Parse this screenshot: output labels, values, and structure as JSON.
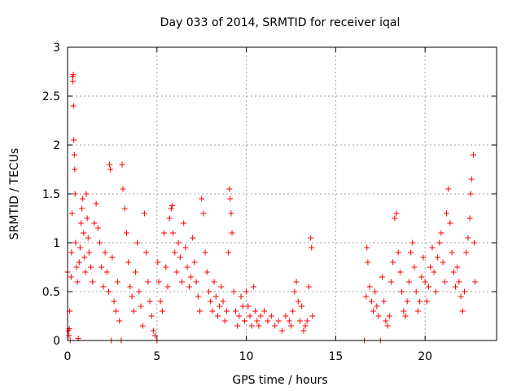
{
  "chart_data": {
    "type": "scatter",
    "title": "Day 033 of 2014, SRMTID for receiver iqal",
    "xlabel": "GPS time / hours",
    "ylabel": "SRMTID / TECUs",
    "xlim": [
      0,
      24
    ],
    "ylim": [
      0,
      3
    ],
    "xticks": [
      0,
      5,
      10,
      15,
      20
    ],
    "xtick_labels": [
      "0",
      "5",
      "10",
      "15",
      "20"
    ],
    "yticks": [
      0,
      0.5,
      1,
      1.5,
      2,
      2.5,
      3
    ],
    "ytick_labels": [
      "0",
      "0.5",
      "1",
      "1.5",
      "2",
      "2.5",
      "3"
    ],
    "grid": true,
    "marker": "+",
    "series": [
      {
        "name": "SRMTID",
        "color": "#ff0000",
        "points": [
          [
            0.0,
            0.7
          ],
          [
            0.05,
            0.1
          ],
          [
            0.08,
            0.05
          ],
          [
            0.1,
            0.12
          ],
          [
            0.12,
            0.3
          ],
          [
            0.15,
            0.0
          ],
          [
            0.2,
            0.65
          ],
          [
            0.22,
            0.9
          ],
          [
            0.25,
            1.3
          ],
          [
            0.28,
            2.7
          ],
          [
            0.3,
            2.65
          ],
          [
            0.32,
            2.72
          ],
          [
            0.33,
            2.4
          ],
          [
            0.35,
            2.05
          ],
          [
            0.38,
            1.9
          ],
          [
            0.4,
            1.75
          ],
          [
            0.42,
            1.5
          ],
          [
            0.45,
            1.0
          ],
          [
            0.5,
            0.75
          ],
          [
            0.55,
            0.6
          ],
          [
            0.6,
            0.02
          ],
          [
            0.65,
            0.8
          ],
          [
            0.7,
            0.95
          ],
          [
            0.75,
            1.2
          ],
          [
            0.8,
            1.35
          ],
          [
            0.85,
            1.45
          ],
          [
            0.9,
            1.1
          ],
          [
            0.95,
            0.85
          ],
          [
            1.0,
            0.7
          ],
          [
            1.05,
            1.5
          ],
          [
            1.1,
            1.25
          ],
          [
            1.15,
            1.05
          ],
          [
            1.2,
            0.9
          ],
          [
            1.3,
            0.75
          ],
          [
            1.4,
            0.6
          ],
          [
            1.5,
            1.2
          ],
          [
            1.6,
            1.4
          ],
          [
            1.7,
            1.15
          ],
          [
            1.8,
            1.0
          ],
          [
            1.9,
            0.75
          ],
          [
            2.0,
            0.55
          ],
          [
            2.1,
            0.9
          ],
          [
            2.2,
            0.7
          ],
          [
            2.3,
            0.5
          ],
          [
            2.35,
            1.8
          ],
          [
            2.4,
            1.75
          ],
          [
            2.45,
            0.0
          ],
          [
            2.5,
            0.85
          ],
          [
            2.6,
            0.4
          ],
          [
            2.7,
            0.3
          ],
          [
            2.8,
            0.6
          ],
          [
            2.9,
            0.2
          ],
          [
            3.0,
            0.0
          ],
          [
            3.05,
            1.8
          ],
          [
            3.1,
            1.55
          ],
          [
            3.2,
            1.35
          ],
          [
            3.3,
            1.1
          ],
          [
            3.4,
            0.8
          ],
          [
            3.5,
            0.55
          ],
          [
            3.6,
            0.45
          ],
          [
            3.7,
            0.3
          ],
          [
            3.8,
            0.7
          ],
          [
            3.9,
            1.0
          ],
          [
            4.0,
            0.5
          ],
          [
            4.1,
            0.35
          ],
          [
            4.2,
            0.15
          ],
          [
            4.3,
            1.3
          ],
          [
            4.4,
            0.9
          ],
          [
            4.5,
            0.6
          ],
          [
            4.6,
            0.4
          ],
          [
            4.7,
            0.25
          ],
          [
            4.8,
            0.1
          ],
          [
            4.9,
            0.05
          ],
          [
            5.0,
            0.0
          ],
          [
            5.05,
            0.8
          ],
          [
            5.1,
            0.6
          ],
          [
            5.2,
            0.4
          ],
          [
            5.3,
            0.3
          ],
          [
            5.4,
            1.1
          ],
          [
            5.5,
            0.75
          ],
          [
            5.6,
            0.55
          ],
          [
            5.7,
            1.25
          ],
          [
            5.8,
            1.35
          ],
          [
            5.85,
            1.38
          ],
          [
            5.9,
            1.1
          ],
          [
            6.0,
            0.9
          ],
          [
            6.1,
            0.7
          ],
          [
            6.2,
            1.0
          ],
          [
            6.3,
            0.85
          ],
          [
            6.4,
            0.6
          ],
          [
            6.5,
            1.2
          ],
          [
            6.6,
            0.95
          ],
          [
            6.7,
            0.75
          ],
          [
            6.8,
            0.55
          ],
          [
            6.9,
            0.65
          ],
          [
            7.0,
            1.05
          ],
          [
            7.1,
            0.8
          ],
          [
            7.2,
            0.6
          ],
          [
            7.3,
            0.45
          ],
          [
            7.4,
            0.3
          ],
          [
            7.5,
            1.45
          ],
          [
            7.6,
            1.3
          ],
          [
            7.7,
            0.9
          ],
          [
            7.8,
            0.7
          ],
          [
            7.9,
            0.5
          ],
          [
            8.0,
            0.4
          ],
          [
            8.1,
            0.3
          ],
          [
            8.2,
            0.6
          ],
          [
            8.3,
            0.45
          ],
          [
            8.4,
            0.25
          ],
          [
            8.5,
            0.35
          ],
          [
            8.6,
            0.55
          ],
          [
            8.7,
            0.4
          ],
          [
            8.8,
            0.2
          ],
          [
            8.9,
            0.3
          ],
          [
            9.0,
            0.9
          ],
          [
            9.05,
            1.55
          ],
          [
            9.1,
            1.45
          ],
          [
            9.15,
            1.3
          ],
          [
            9.2,
            1.1
          ],
          [
            9.3,
            0.5
          ],
          [
            9.4,
            0.3
          ],
          [
            9.5,
            0.15
          ],
          [
            9.6,
            0.25
          ],
          [
            9.7,
            0.45
          ],
          [
            9.8,
            0.35
          ],
          [
            9.9,
            0.2
          ],
          [
            10.0,
            0.5
          ],
          [
            10.1,
            0.35
          ],
          [
            10.2,
            0.25
          ],
          [
            10.3,
            0.15
          ],
          [
            10.4,
            0.55
          ],
          [
            10.5,
            0.3
          ],
          [
            10.6,
            0.2
          ],
          [
            10.7,
            0.15
          ],
          [
            10.8,
            0.25
          ],
          [
            11.0,
            0.3
          ],
          [
            11.2,
            0.2
          ],
          [
            11.4,
            0.25
          ],
          [
            11.6,
            0.15
          ],
          [
            11.8,
            0.2
          ],
          [
            12.0,
            0.1
          ],
          [
            12.2,
            0.25
          ],
          [
            12.4,
            0.2
          ],
          [
            12.5,
            0.15
          ],
          [
            12.6,
            0.3
          ],
          [
            12.7,
            0.5
          ],
          [
            12.8,
            0.6
          ],
          [
            12.9,
            0.4
          ],
          [
            13.0,
            0.2
          ],
          [
            13.1,
            0.35
          ],
          [
            13.2,
            0.1
          ],
          [
            13.3,
            0.15
          ],
          [
            13.4,
            0.2
          ],
          [
            13.5,
            0.55
          ],
          [
            13.6,
            1.05
          ],
          [
            13.65,
            0.95
          ],
          [
            13.7,
            0.25
          ],
          [
            16.6,
            0.0
          ],
          [
            16.7,
            0.45
          ],
          [
            16.75,
            0.95
          ],
          [
            16.8,
            0.8
          ],
          [
            16.9,
            0.55
          ],
          [
            17.0,
            0.4
          ],
          [
            17.1,
            0.3
          ],
          [
            17.2,
            0.5
          ],
          [
            17.3,
            0.35
          ],
          [
            17.4,
            0.25
          ],
          [
            17.5,
            0.0
          ],
          [
            17.6,
            0.65
          ],
          [
            17.7,
            0.4
          ],
          [
            17.8,
            0.2
          ],
          [
            17.9,
            0.15
          ],
          [
            18.0,
            0.25
          ],
          [
            18.1,
            0.6
          ],
          [
            18.2,
            0.8
          ],
          [
            18.3,
            1.25
          ],
          [
            18.4,
            1.3
          ],
          [
            18.5,
            0.9
          ],
          [
            18.6,
            0.7
          ],
          [
            18.7,
            0.5
          ],
          [
            18.8,
            0.3
          ],
          [
            18.9,
            0.25
          ],
          [
            19.0,
            0.4
          ],
          [
            19.1,
            0.6
          ],
          [
            19.2,
            0.9
          ],
          [
            19.3,
            1.0
          ],
          [
            19.4,
            0.75
          ],
          [
            19.5,
            0.5
          ],
          [
            19.6,
            0.3
          ],
          [
            19.7,
            0.4
          ],
          [
            19.8,
            0.65
          ],
          [
            19.9,
            0.85
          ],
          [
            20.0,
            0.6
          ],
          [
            20.1,
            0.4
          ],
          [
            20.2,
            0.55
          ],
          [
            20.3,
            0.75
          ],
          [
            20.4,
            0.95
          ],
          [
            20.5,
            0.7
          ],
          [
            20.6,
            0.5
          ],
          [
            20.7,
            0.85
          ],
          [
            20.8,
            1.0
          ],
          [
            20.9,
            1.1
          ],
          [
            21.0,
            0.8
          ],
          [
            21.1,
            0.6
          ],
          [
            21.2,
            1.3
          ],
          [
            21.3,
            1.55
          ],
          [
            21.4,
            1.2
          ],
          [
            21.5,
            0.9
          ],
          [
            21.6,
            0.7
          ],
          [
            21.7,
            0.55
          ],
          [
            21.8,
            0.75
          ],
          [
            21.9,
            0.6
          ],
          [
            22.0,
            0.45
          ],
          [
            22.1,
            0.3
          ],
          [
            22.2,
            0.5
          ],
          [
            22.3,
            0.9
          ],
          [
            22.4,
            1.05
          ],
          [
            22.5,
            1.25
          ],
          [
            22.55,
            1.5
          ],
          [
            22.6,
            1.65
          ],
          [
            22.7,
            1.9
          ],
          [
            22.75,
            1.0
          ],
          [
            22.8,
            0.6
          ]
        ]
      }
    ]
  }
}
